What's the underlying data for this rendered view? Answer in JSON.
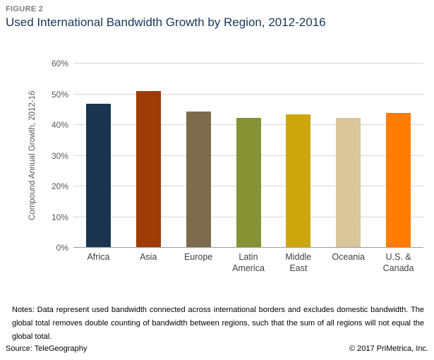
{
  "header": {
    "figure_label": "FIGURE 2",
    "title": "Used International Bandwidth Growth by Region, 2012-2016"
  },
  "chart_data": {
    "type": "bar",
    "title": "Used International Bandwidth Growth by Region, 2012-2016",
    "xlabel": "",
    "ylabel": "Compound Annual Growth, 2012-16",
    "ylim": [
      0,
      60
    ],
    "ytick_step": 10,
    "ytick_suffix": "%",
    "grid": true,
    "legend": "none",
    "categories": [
      "Africa",
      "Asia",
      "Europe",
      "Latin America",
      "Middle East",
      "Oceania",
      "U.S. & Canada"
    ],
    "values": [
      46.8,
      51.0,
      44.4,
      42.3,
      43.4,
      42.2,
      43.8
    ],
    "bar_colors": [
      "#1b3450",
      "#9e3b06",
      "#7e6b4e",
      "#869233",
      "#cda60c",
      "#d9c79b",
      "#fe7d00"
    ]
  },
  "notes": {
    "text": "Notes: Data represent used bandwidth connected across international borders and excludes domestic bandwidth. The global total removes double counting of bandwidth between regions, such that the sum of all regions will not equal the global total."
  },
  "footer": {
    "source": "Source: TeleGeography",
    "copyright": "© 2017 PriMetrica, Inc."
  }
}
